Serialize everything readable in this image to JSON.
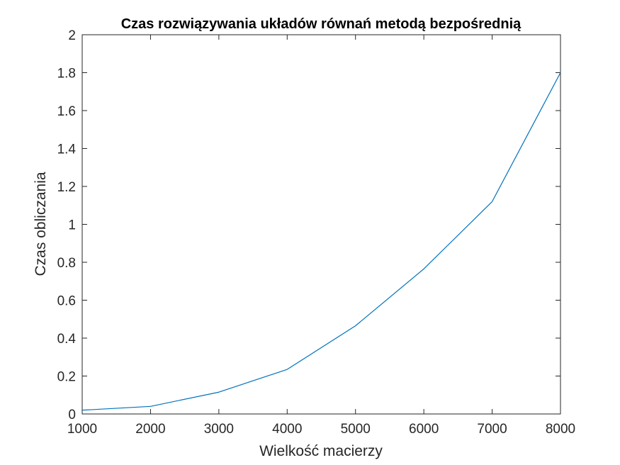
{
  "chart_data": {
    "type": "line",
    "title": "Czas rozwiązywania układów równań metodą bezpośrednią",
    "xlabel": "Wielkość macierzy",
    "ylabel": "Czas obliczania",
    "x": [
      1000,
      2000,
      3000,
      4000,
      5000,
      6000,
      7000,
      8000
    ],
    "series": [
      {
        "values": [
          0.02,
          0.04,
          0.115,
          0.235,
          0.465,
          0.765,
          1.12,
          1.8
        ],
        "color": "#0072BD"
      }
    ],
    "xlim": [
      1000,
      8000
    ],
    "ylim": [
      0,
      2
    ],
    "xticks": [
      1000,
      2000,
      3000,
      4000,
      5000,
      6000,
      7000,
      8000
    ],
    "xtick_labels": [
      "1000",
      "2000",
      "3000",
      "4000",
      "5000",
      "6000",
      "7000",
      "8000"
    ],
    "yticks": [
      0,
      0.2,
      0.4,
      0.6,
      0.8,
      1,
      1.2,
      1.4,
      1.6,
      1.8,
      2
    ],
    "ytick_labels": [
      "0",
      "0.2",
      "0.4",
      "0.6",
      "0.8",
      "1",
      "1.2",
      "1.4",
      "1.6",
      "1.8",
      "2"
    ],
    "grid": false,
    "legend": "none",
    "axes_color": "#262626"
  }
}
